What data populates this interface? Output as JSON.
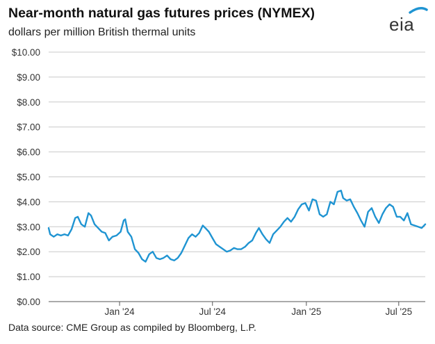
{
  "title": "Near-month natural gas futures prices (NYMEX)",
  "subtitle": "dollars per million British thermal units",
  "source": "Data source: CME Group as compiled by Bloomberg, L.P.",
  "logo_text": "eia",
  "colors": {
    "line": "#1f94d2",
    "grid": "#c8c8c8",
    "axis": "#555555",
    "logo_arc": "#1f94d2"
  },
  "chart_data": {
    "type": "line",
    "title": "Near-month natural gas futures prices (NYMEX)",
    "ylabel": "dollars per million British thermal units",
    "ylim": [
      0,
      10
    ],
    "grid": true,
    "y_ticks": [
      "$0.00",
      "$1.00",
      "$2.00",
      "$3.00",
      "$4.00",
      "$5.00",
      "$6.00",
      "$7.00",
      "$8.00",
      "$9.00",
      "$10.00"
    ],
    "x_range": [
      "2023-08-15",
      "2025-08-22"
    ],
    "x_ticks": [
      {
        "label": "Jan '24",
        "date": "2024-01-01"
      },
      {
        "label": "Jul '24",
        "date": "2024-07-01"
      },
      {
        "label": "Jan '25",
        "date": "2025-01-01"
      },
      {
        "label": "Jul '25",
        "date": "2025-07-01"
      }
    ],
    "series": [
      {
        "points": [
          [
            "2023-08-15",
            2.95
          ],
          [
            "2023-08-18",
            2.7
          ],
          [
            "2023-08-25",
            2.6
          ],
          [
            "2023-09-01",
            2.7
          ],
          [
            "2023-09-08",
            2.65
          ],
          [
            "2023-09-15",
            2.7
          ],
          [
            "2023-09-22",
            2.65
          ],
          [
            "2023-09-29",
            2.9
          ],
          [
            "2023-10-06",
            3.35
          ],
          [
            "2023-10-11",
            3.4
          ],
          [
            "2023-10-18",
            3.1
          ],
          [
            "2023-10-25",
            3.0
          ],
          [
            "2023-11-01",
            3.55
          ],
          [
            "2023-11-06",
            3.45
          ],
          [
            "2023-11-13",
            3.1
          ],
          [
            "2023-11-20",
            2.95
          ],
          [
            "2023-11-27",
            2.8
          ],
          [
            "2023-12-04",
            2.75
          ],
          [
            "2023-12-11",
            2.45
          ],
          [
            "2023-12-18",
            2.6
          ],
          [
            "2023-12-26",
            2.65
          ],
          [
            "2024-01-03",
            2.8
          ],
          [
            "2024-01-09",
            3.25
          ],
          [
            "2024-01-12",
            3.3
          ],
          [
            "2024-01-17",
            2.8
          ],
          [
            "2024-01-24",
            2.6
          ],
          [
            "2024-01-31",
            2.1
          ],
          [
            "2024-02-07",
            1.95
          ],
          [
            "2024-02-14",
            1.7
          ],
          [
            "2024-02-21",
            1.6
          ],
          [
            "2024-02-28",
            1.9
          ],
          [
            "2024-03-06",
            2.0
          ],
          [
            "2024-03-13",
            1.75
          ],
          [
            "2024-03-20",
            1.7
          ],
          [
            "2024-03-27",
            1.75
          ],
          [
            "2024-04-03",
            1.85
          ],
          [
            "2024-04-10",
            1.7
          ],
          [
            "2024-04-17",
            1.65
          ],
          [
            "2024-04-24",
            1.75
          ],
          [
            "2024-05-01",
            1.95
          ],
          [
            "2024-05-08",
            2.25
          ],
          [
            "2024-05-15",
            2.55
          ],
          [
            "2024-05-22",
            2.7
          ],
          [
            "2024-05-29",
            2.6
          ],
          [
            "2024-06-05",
            2.75
          ],
          [
            "2024-06-12",
            3.05
          ],
          [
            "2024-06-17",
            2.95
          ],
          [
            "2024-06-24",
            2.8
          ],
          [
            "2024-07-01",
            2.55
          ],
          [
            "2024-07-08",
            2.3
          ],
          [
            "2024-07-15",
            2.2
          ],
          [
            "2024-07-22",
            2.1
          ],
          [
            "2024-07-29",
            2.0
          ],
          [
            "2024-08-05",
            2.05
          ],
          [
            "2024-08-12",
            2.15
          ],
          [
            "2024-08-19",
            2.1
          ],
          [
            "2024-08-26",
            2.1
          ],
          [
            "2024-09-03",
            2.2
          ],
          [
            "2024-09-10",
            2.35
          ],
          [
            "2024-09-17",
            2.45
          ],
          [
            "2024-09-24",
            2.75
          ],
          [
            "2024-09-30",
            2.95
          ],
          [
            "2024-10-07",
            2.7
          ],
          [
            "2024-10-14",
            2.5
          ],
          [
            "2024-10-21",
            2.35
          ],
          [
            "2024-10-28",
            2.7
          ],
          [
            "2024-11-04",
            2.85
          ],
          [
            "2024-11-11",
            3.0
          ],
          [
            "2024-11-18",
            3.2
          ],
          [
            "2024-11-25",
            3.35
          ],
          [
            "2024-12-02",
            3.2
          ],
          [
            "2024-12-09",
            3.4
          ],
          [
            "2024-12-16",
            3.7
          ],
          [
            "2024-12-23",
            3.9
          ],
          [
            "2024-12-30",
            3.95
          ],
          [
            "2025-01-06",
            3.65
          ],
          [
            "2025-01-13",
            4.1
          ],
          [
            "2025-01-20",
            4.05
          ],
          [
            "2025-01-27",
            3.5
          ],
          [
            "2025-02-03",
            3.4
          ],
          [
            "2025-02-10",
            3.5
          ],
          [
            "2025-02-17",
            4.0
          ],
          [
            "2025-02-24",
            3.9
          ],
          [
            "2025-03-03",
            4.4
          ],
          [
            "2025-03-10",
            4.45
          ],
          [
            "2025-03-14",
            4.15
          ],
          [
            "2025-03-21",
            4.05
          ],
          [
            "2025-03-28",
            4.1
          ],
          [
            "2025-04-04",
            3.8
          ],
          [
            "2025-04-11",
            3.55
          ],
          [
            "2025-04-18",
            3.25
          ],
          [
            "2025-04-25",
            3.0
          ],
          [
            "2025-05-02",
            3.6
          ],
          [
            "2025-05-09",
            3.75
          ],
          [
            "2025-05-16",
            3.4
          ],
          [
            "2025-05-23",
            3.15
          ],
          [
            "2025-05-30",
            3.5
          ],
          [
            "2025-06-06",
            3.75
          ],
          [
            "2025-06-13",
            3.9
          ],
          [
            "2025-06-20",
            3.8
          ],
          [
            "2025-06-27",
            3.4
          ],
          [
            "2025-07-04",
            3.4
          ],
          [
            "2025-07-11",
            3.25
          ],
          [
            "2025-07-18",
            3.55
          ],
          [
            "2025-07-25",
            3.1
          ],
          [
            "2025-08-01",
            3.05
          ],
          [
            "2025-08-08",
            3.0
          ],
          [
            "2025-08-15",
            2.95
          ],
          [
            "2025-08-22",
            3.1
          ]
        ]
      }
    ]
  }
}
